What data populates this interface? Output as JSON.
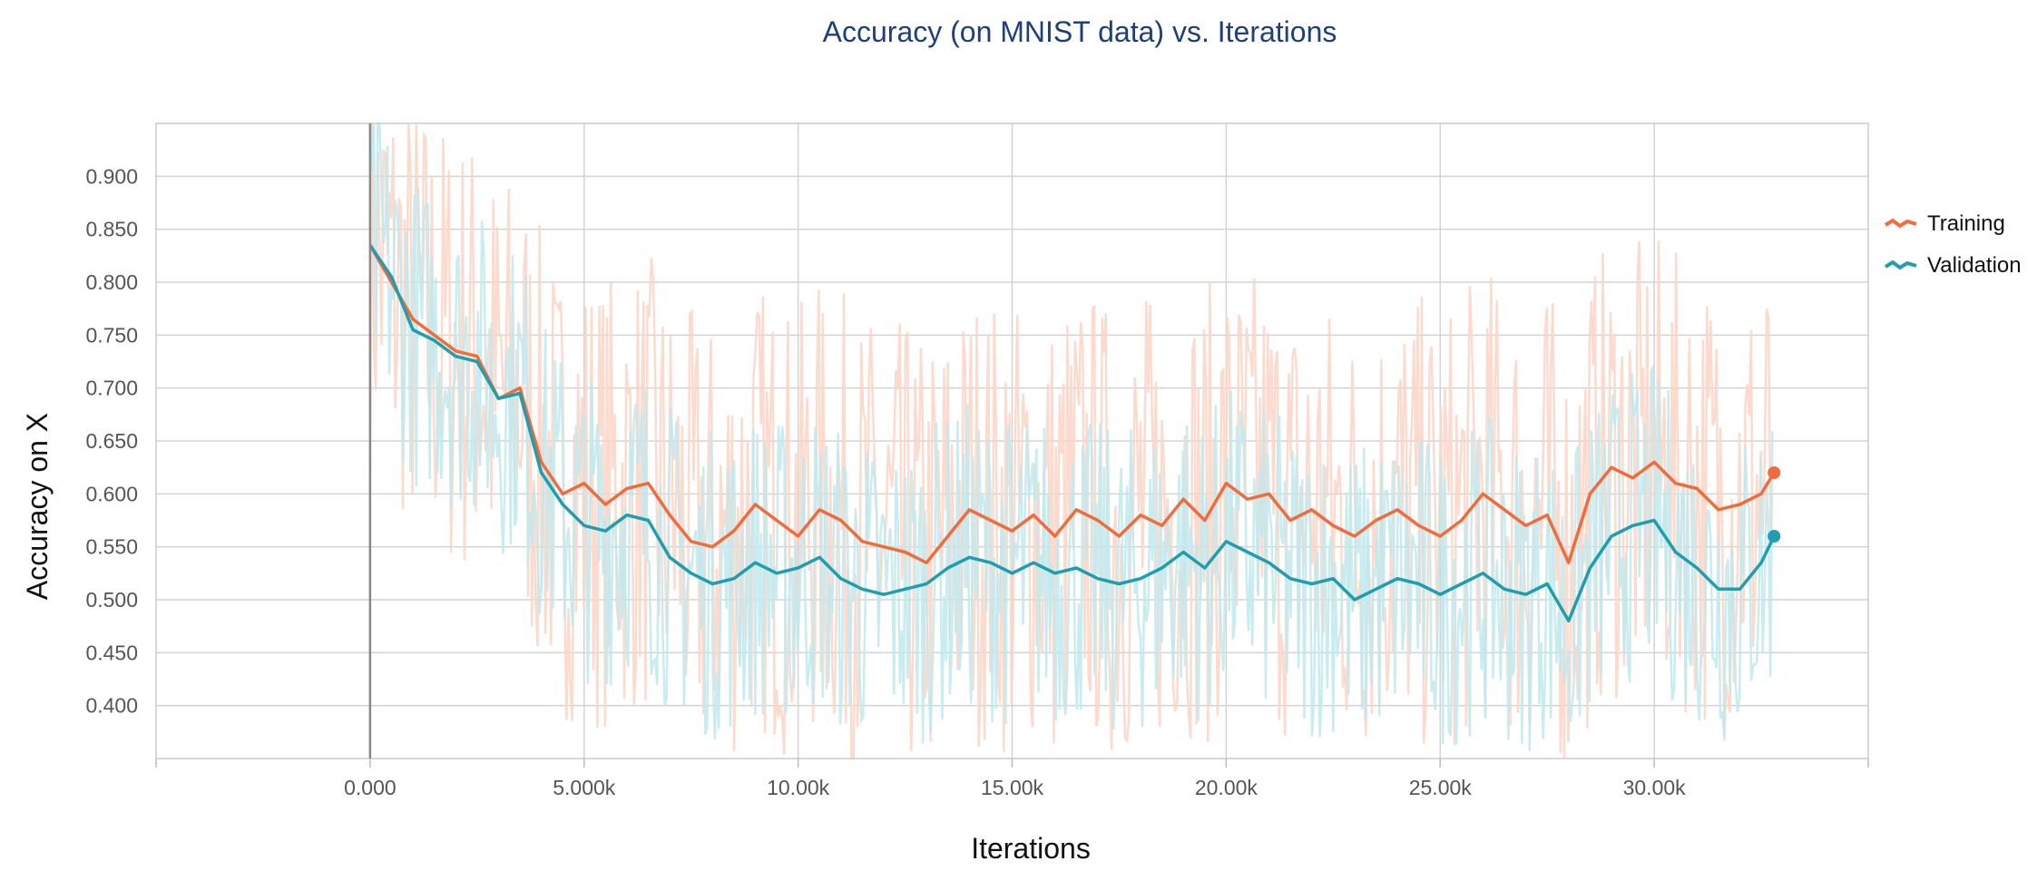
{
  "chart_data": {
    "type": "line",
    "title": "Accuracy (on MNIST data) vs. Iterations",
    "xlabel": "Iterations",
    "ylabel": "Accuracy on X",
    "xlim": [
      -5000,
      35000
    ],
    "ylim": [
      0.35,
      0.95
    ],
    "grid": true,
    "legend_position": "right",
    "x_ticks": [
      {
        "value": 0,
        "label": "0.000"
      },
      {
        "value": 5000,
        "label": "5.000k"
      },
      {
        "value": 10000,
        "label": "10.00k"
      },
      {
        "value": 15000,
        "label": "15.00k"
      },
      {
        "value": 20000,
        "label": "20.00k"
      },
      {
        "value": 25000,
        "label": "25.00k"
      },
      {
        "value": 30000,
        "label": "30.00k"
      }
    ],
    "y_ticks": [
      {
        "value": 0.4,
        "label": "0.400"
      },
      {
        "value": 0.45,
        "label": "0.450"
      },
      {
        "value": 0.5,
        "label": "0.500"
      },
      {
        "value": 0.55,
        "label": "0.550"
      },
      {
        "value": 0.6,
        "label": "0.600"
      },
      {
        "value": 0.65,
        "label": "0.650"
      },
      {
        "value": 0.7,
        "label": "0.700"
      },
      {
        "value": 0.75,
        "label": "0.750"
      },
      {
        "value": 0.8,
        "label": "0.800"
      },
      {
        "value": 0.85,
        "label": "0.850"
      },
      {
        "value": 0.9,
        "label": "0.900"
      }
    ],
    "series": [
      {
        "name": "Training",
        "color": "#f26b3a",
        "raw_color": "#fbd5c6",
        "x": [
          0,
          500,
          1000,
          1500,
          2000,
          2500,
          3000,
          3500,
          4000,
          4500,
          5000,
          5500,
          6000,
          6500,
          7000,
          7500,
          8000,
          8500,
          9000,
          9500,
          10000,
          10500,
          11000,
          11500,
          12000,
          12500,
          13000,
          13500,
          14000,
          14500,
          15000,
          15500,
          16000,
          16500,
          17000,
          17500,
          18000,
          18500,
          19000,
          19500,
          20000,
          20500,
          21000,
          21500,
          22000,
          22500,
          23000,
          23500,
          24000,
          24500,
          25000,
          25500,
          26000,
          26500,
          27000,
          27500,
          28000,
          28500,
          29000,
          29500,
          30000,
          30500,
          31000,
          31500,
          32000,
          32500,
          32800
        ],
        "values": [
          0.835,
          0.8,
          0.765,
          0.75,
          0.735,
          0.73,
          0.69,
          0.7,
          0.63,
          0.6,
          0.61,
          0.59,
          0.605,
          0.61,
          0.58,
          0.555,
          0.55,
          0.565,
          0.59,
          0.575,
          0.56,
          0.585,
          0.575,
          0.555,
          0.55,
          0.545,
          0.535,
          0.56,
          0.585,
          0.575,
          0.565,
          0.58,
          0.56,
          0.585,
          0.575,
          0.56,
          0.58,
          0.57,
          0.595,
          0.575,
          0.61,
          0.595,
          0.6,
          0.575,
          0.585,
          0.57,
          0.56,
          0.575,
          0.585,
          0.57,
          0.56,
          0.575,
          0.6,
          0.585,
          0.57,
          0.58,
          0.535,
          0.6,
          0.625,
          0.615,
          0.63,
          0.61,
          0.605,
          0.585,
          0.59,
          0.6,
          0.62
        ]
      },
      {
        "name": "Validation",
        "color": "#1e9eae",
        "raw_color": "#bfe9ef",
        "x": [
          0,
          500,
          1000,
          1500,
          2000,
          2500,
          3000,
          3500,
          4000,
          4500,
          5000,
          5500,
          6000,
          6500,
          7000,
          7500,
          8000,
          8500,
          9000,
          9500,
          10000,
          10500,
          11000,
          11500,
          12000,
          12500,
          13000,
          13500,
          14000,
          14500,
          15000,
          15500,
          16000,
          16500,
          17000,
          17500,
          18000,
          18500,
          19000,
          19500,
          20000,
          20500,
          21000,
          21500,
          22000,
          22500,
          23000,
          23500,
          24000,
          24500,
          25000,
          25500,
          26000,
          26500,
          27000,
          27500,
          28000,
          28500,
          29000,
          29500,
          30000,
          30500,
          31000,
          31500,
          32000,
          32500,
          32800
        ],
        "values": [
          0.835,
          0.805,
          0.755,
          0.745,
          0.73,
          0.725,
          0.69,
          0.695,
          0.62,
          0.59,
          0.57,
          0.565,
          0.58,
          0.575,
          0.54,
          0.525,
          0.515,
          0.52,
          0.535,
          0.525,
          0.53,
          0.54,
          0.52,
          0.51,
          0.505,
          0.51,
          0.515,
          0.53,
          0.54,
          0.535,
          0.525,
          0.535,
          0.525,
          0.53,
          0.52,
          0.515,
          0.52,
          0.53,
          0.545,
          0.53,
          0.555,
          0.545,
          0.535,
          0.52,
          0.515,
          0.52,
          0.5,
          0.51,
          0.52,
          0.515,
          0.505,
          0.515,
          0.525,
          0.51,
          0.505,
          0.515,
          0.48,
          0.53,
          0.56,
          0.57,
          0.575,
          0.545,
          0.53,
          0.51,
          0.51,
          0.535,
          0.56
        ]
      }
    ]
  }
}
